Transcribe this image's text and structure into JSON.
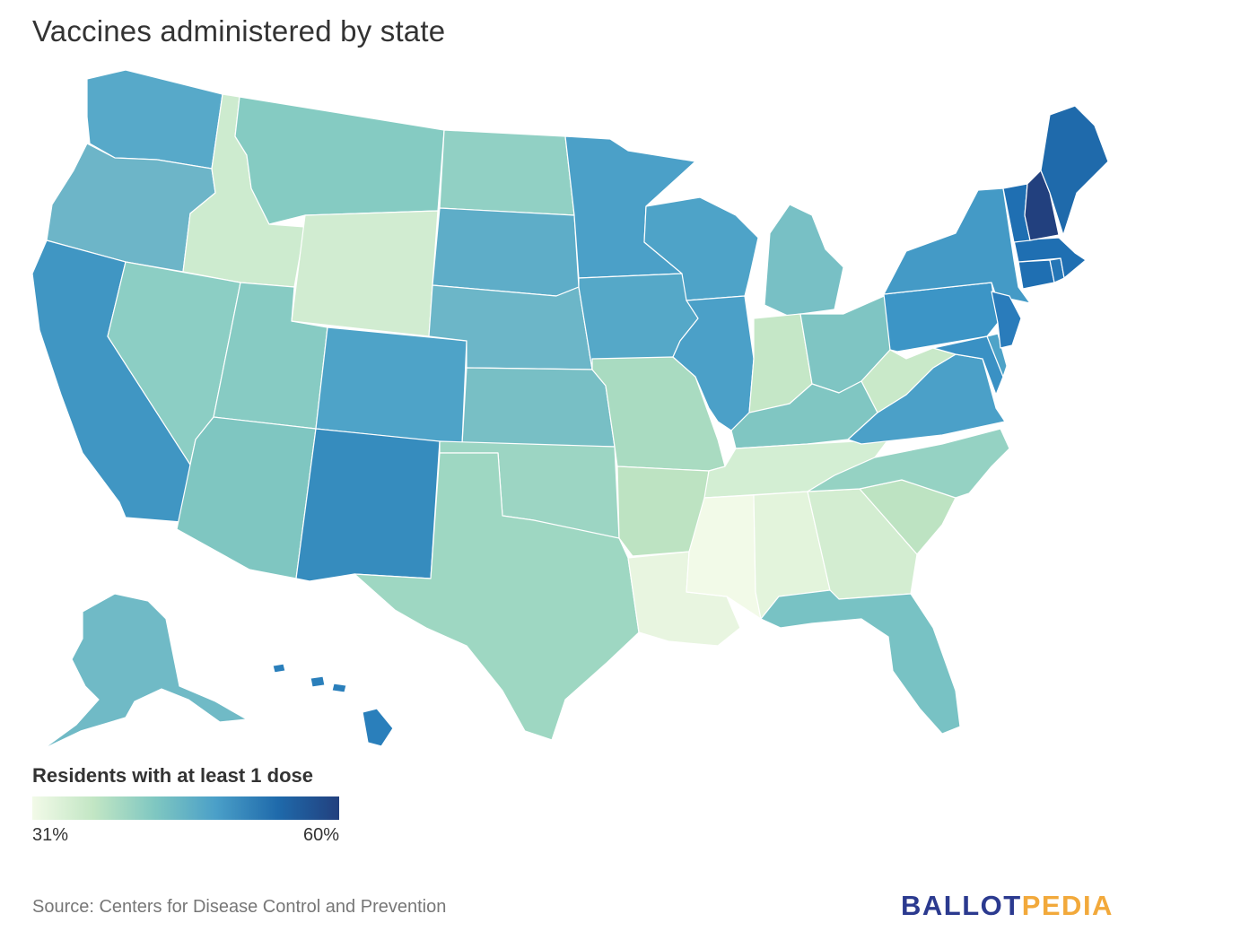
{
  "title": "Vaccines administered by state",
  "legend": {
    "title": "Residents with at least 1 dose",
    "min_label": "31%",
    "max_label": "60%",
    "min_value": 31,
    "max_value": 60,
    "ramp": [
      "#f2fae8",
      "#c2e6c4",
      "#7fc7c1",
      "#4a9fc8",
      "#1f6aab",
      "#22407e"
    ]
  },
  "source": "Source: Centers for Disease Control and Prevention",
  "logo": {
    "part1": "BALLOT",
    "part2": "PEDIA",
    "color1": "#2b3a8f",
    "color2": "#f2a93b"
  },
  "states": [
    {
      "name": "Washington",
      "color": "#57a9c9"
    },
    {
      "name": "Oregon",
      "color": "#6db5c8"
    },
    {
      "name": "California",
      "color": "#4096c3"
    },
    {
      "name": "Idaho",
      "color": "#cdebcf"
    },
    {
      "name": "Nevada",
      "color": "#8ccec4"
    },
    {
      "name": "Utah",
      "color": "#87cbc3"
    },
    {
      "name": "Arizona",
      "color": "#7fc6c1"
    },
    {
      "name": "Montana",
      "color": "#85cbc2"
    },
    {
      "name": "Wyoming",
      "color": "#d1ecd1"
    },
    {
      "name": "Colorado",
      "color": "#4ea3c8"
    },
    {
      "name": "New Mexico",
      "color": "#368cbe"
    },
    {
      "name": "North Dakota",
      "color": "#91d0c4"
    },
    {
      "name": "South Dakota",
      "color": "#5eadc8"
    },
    {
      "name": "Nebraska",
      "color": "#6cb6c8"
    },
    {
      "name": "Kansas",
      "color": "#78bfc5"
    },
    {
      "name": "Oklahoma",
      "color": "#9cd5c3"
    },
    {
      "name": "Texas",
      "color": "#9ed7c2"
    },
    {
      "name": "Minnesota",
      "color": "#4ba0c8"
    },
    {
      "name": "Iowa",
      "color": "#55a8c8"
    },
    {
      "name": "Missouri",
      "color": "#a9dbc1"
    },
    {
      "name": "Arkansas",
      "color": "#bde3c2"
    },
    {
      "name": "Louisiana",
      "color": "#e8f5e0"
    },
    {
      "name": "Wisconsin",
      "color": "#4ea3c8"
    },
    {
      "name": "Illinois",
      "color": "#4ba0c8"
    },
    {
      "name": "Michigan",
      "color": "#78c0c5"
    },
    {
      "name": "Indiana",
      "color": "#c5e7c7"
    },
    {
      "name": "Ohio",
      "color": "#7fc5c3"
    },
    {
      "name": "Kentucky",
      "color": "#80c6c2"
    },
    {
      "name": "Tennessee",
      "color": "#d3eed3"
    },
    {
      "name": "Mississippi",
      "color": "#f2fae8"
    },
    {
      "name": "Alabama",
      "color": "#e3f4dc"
    },
    {
      "name": "Georgia",
      "color": "#d3edd1"
    },
    {
      "name": "Florida",
      "color": "#78c2c4"
    },
    {
      "name": "South Carolina",
      "color": "#bde3c2"
    },
    {
      "name": "North Carolina",
      "color": "#95d2c3"
    },
    {
      "name": "Virginia",
      "color": "#4ba0c8"
    },
    {
      "name": "West Virginia",
      "color": "#c9e9c9"
    },
    {
      "name": "Pennsylvania",
      "color": "#3c95c6"
    },
    {
      "name": "New York",
      "color": "#449ac6"
    },
    {
      "name": "Maryland",
      "color": "#3a91c4"
    },
    {
      "name": "Delaware",
      "color": "#4ea3c8"
    },
    {
      "name": "New Jersey",
      "color": "#2a7cbb"
    },
    {
      "name": "Connecticut",
      "color": "#1f6fb2"
    },
    {
      "name": "Rhode Island",
      "color": "#2576b6"
    },
    {
      "name": "Massachusetts",
      "color": "#1f6fb2"
    },
    {
      "name": "Vermont",
      "color": "#1f6fb2"
    },
    {
      "name": "New Hampshire",
      "color": "#22407e"
    },
    {
      "name": "Maine",
      "color": "#1f6aab"
    },
    {
      "name": "Alaska",
      "color": "#70bac6"
    },
    {
      "name": "Hawaii",
      "color": "#2a7fbb"
    }
  ]
}
